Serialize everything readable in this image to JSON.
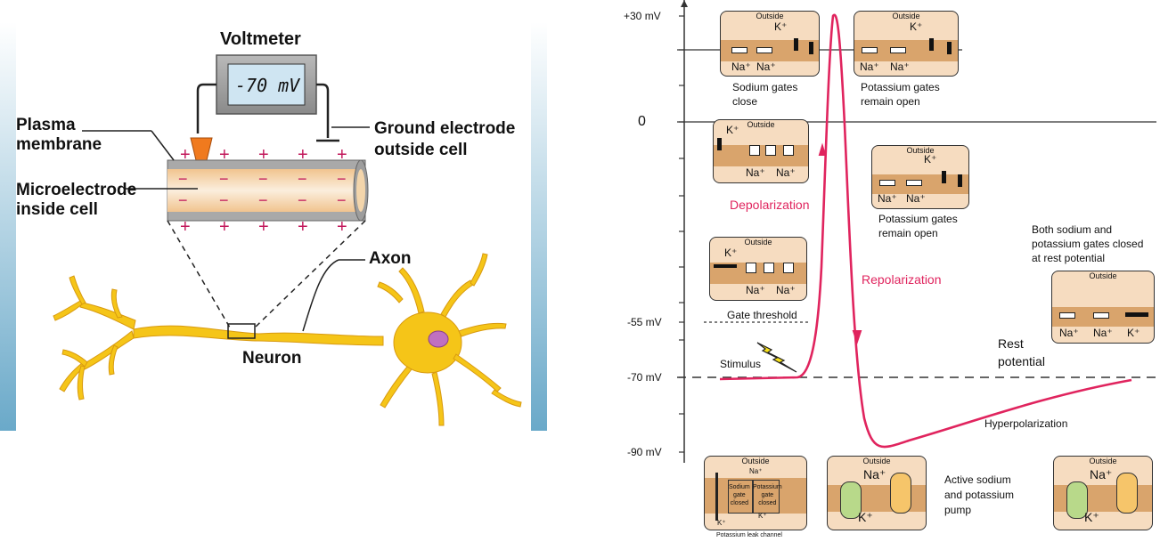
{
  "left_panel": {
    "voltmeter_label": "Voltmeter",
    "voltmeter_reading": "-70 mV",
    "plasma_membrane": "Plasma\nmembrane",
    "ground_electrode": "Ground electrode\noutside cell",
    "microelectrode": "Microelectrode\ninside cell",
    "axon": "Axon",
    "neuron": "Neuron",
    "plus": "+",
    "minus": "−"
  },
  "right_panel": {
    "y_labels": {
      "p30": "+30 mV",
      "zero": "0",
      "m55": "-55 mV",
      "m70": "-70 mV",
      "m90": "-90 mV"
    },
    "labels": {
      "sodium_close": "Sodium gates\nclose",
      "potassium_open_1": "Potassium gates\nremain open",
      "potassium_open_2": "Potassium gates\nremain open",
      "depolarization": "Depolarization",
      "repolarization": "Repolarization",
      "both_closed": "Both sodium and\npotassium gates closed\nat rest potential",
      "gate_threshold": "Gate threshold",
      "stimulus": "Stimulus",
      "rest_potential": "Rest\npotential",
      "hyperpolarization": "Hyperpolarization",
      "pump": "Active sodium\nand potassium\npump",
      "leak_channel": "Potassium leak channel",
      "sodium_gate_closed": "Sodium\ngate\nclosed",
      "potassium_gate_closed": "Potassium\ngate\nclosed"
    },
    "outside": "Outside",
    "ions": {
      "k": "K⁺",
      "na": "Na⁺"
    }
  },
  "colors": {
    "curve": "#e0245e",
    "axon": "#f5c518",
    "membrane": "#d9a46c",
    "inset_bg": "#f6dcc0"
  }
}
